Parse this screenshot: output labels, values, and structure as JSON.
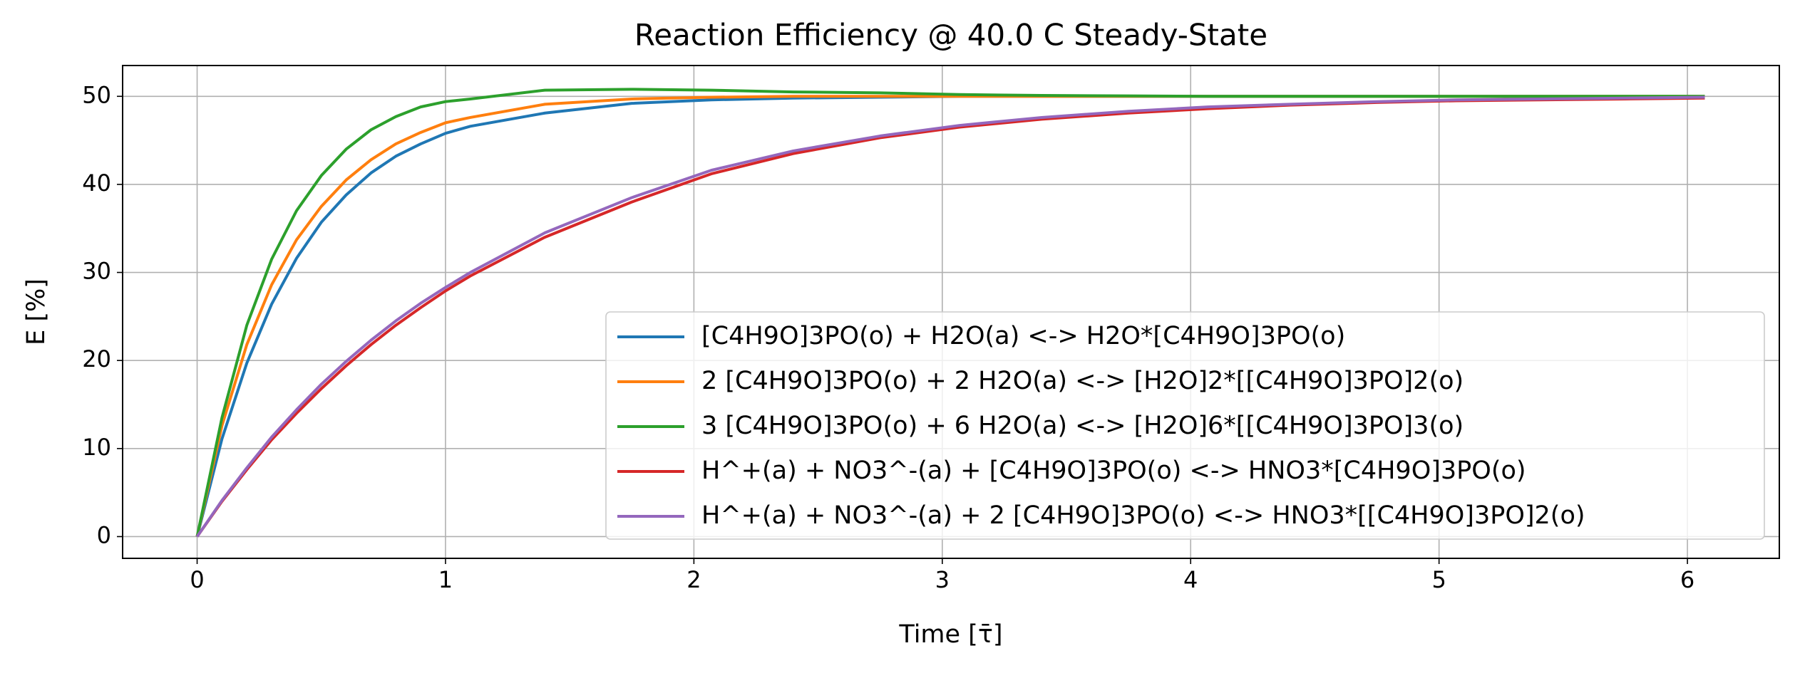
{
  "chart_data": {
    "type": "line",
    "title": "Reaction Efficiency @ 40.0 C Steady-State",
    "x_label": "Time [τ̄]",
    "y_label": "E [%]",
    "x": [
      0,
      0.1,
      0.2,
      0.3,
      0.4,
      0.5,
      0.6,
      0.7,
      0.8,
      0.9,
      1.0,
      1.1,
      1.4,
      1.75,
      2.07,
      2.4,
      2.75,
      3.07,
      3.4,
      3.75,
      4.07,
      4.4,
      4.75,
      5.07,
      5.4,
      5.75,
      6.07
    ],
    "series": [
      {
        "name": "[C4H9O]3PO(o) + H2O(a) <-> H2O*[C4H9O]3PO(o)",
        "color": "#1f77b4",
        "values": [
          0,
          11.1,
          19.7,
          26.4,
          31.6,
          35.7,
          38.8,
          41.3,
          43.2,
          44.6,
          45.8,
          46.6,
          48.1,
          49.2,
          49.6,
          49.8,
          49.9,
          50,
          50,
          50,
          50,
          50,
          50,
          50,
          50,
          50,
          50
        ]
      },
      {
        "name": "2 [C4H9O]3PO(o) + 2 H2O(a) <-> [H2O]2*[[C4H9O]3PO]2(o)",
        "color": "#ff7f0e",
        "values": [
          0,
          12.6,
          21.8,
          28.6,
          33.7,
          37.5,
          40.5,
          42.8,
          44.6,
          45.9,
          47.0,
          47.6,
          49.1,
          49.7,
          49.9,
          50,
          50,
          50,
          50,
          50,
          50,
          50,
          50,
          50,
          50,
          50,
          50
        ]
      },
      {
        "name": "3 [C4H9O]3PO(o) + 6 H2O(a) <-> [H2O]6*[[C4H9O]3PO]3(o)",
        "color": "#2ca02c",
        "values": [
          0,
          13.5,
          24,
          31.5,
          37,
          41,
          44,
          46.2,
          47.7,
          48.8,
          49.4,
          49.7,
          50.7,
          50.8,
          50.7,
          50.5,
          50.4,
          50.2,
          50.1,
          50.05,
          50,
          50,
          50,
          50,
          50,
          50,
          50
        ]
      },
      {
        "name": "H^+(a) + NO3^-(a) + [C4H9O]3PO(o) <-> HNO3*[C4H9O]3PO(o)",
        "color": "#d62728",
        "values": [
          0,
          4.0,
          7.6,
          11.0,
          14.0,
          16.8,
          19.4,
          21.8,
          24.0,
          26.0,
          27.9,
          29.6,
          34.0,
          38.0,
          41.2,
          43.5,
          45.3,
          46.5,
          47.4,
          48.1,
          48.6,
          49.0,
          49.3,
          49.5,
          49.6,
          49.7,
          49.8
        ]
      },
      {
        "name": "H^+(a) + NO3^-(a) + 2 [C4H9O]3PO(o) <-> HNO3*[[C4H9O]3PO]2(o)",
        "color": "#9467bd",
        "values": [
          0,
          4.1,
          7.8,
          11.3,
          14.4,
          17.3,
          19.9,
          22.3,
          24.5,
          26.5,
          28.3,
          30.0,
          34.5,
          38.5,
          41.6,
          43.8,
          45.5,
          46.7,
          47.6,
          48.3,
          48.8,
          49.1,
          49.4,
          49.6,
          49.7,
          49.8,
          49.9
        ]
      }
    ],
    "xlim": [
      -0.3,
      6.37
    ],
    "ylim": [
      -2.47,
      53.5
    ],
    "xticks": [
      0,
      1,
      2,
      3,
      4,
      5,
      6
    ],
    "yticks": [
      0,
      10,
      20,
      30,
      40,
      50
    ],
    "grid": true,
    "legend": "lower right"
  }
}
